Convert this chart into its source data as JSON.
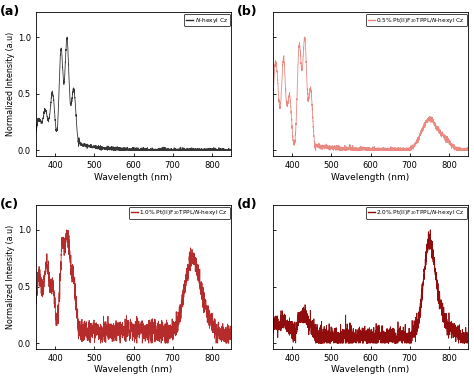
{
  "panel_labels": [
    "(a)",
    "(b)",
    "(c)",
    "(d)"
  ],
  "legend_labels_raw": [
    "–  $\\itN$-hexyl Cz",
    "–   0.5% Pt(II)F$_{20}$TPPL/$N$-hexyl Cz",
    "–   1.0% Pt(II)F$_{20}$TPPL/$N$-hexyl Cz",
    "–   2.0% Pt(II)F$_{20}$TPPL/$N$-hexyl Cz"
  ],
  "legend_labels_simple": [
    "$\\it{N}$-hexyl Cz",
    "0.5% Pt(II)F$_{20}$TPPL/$\\it{N}$-hexyl Cz",
    "1.0% Pt(II)F$_{20}$TPPL/$\\it{N}$-hexyl Cz",
    "2.0% Pt(II)F$_{20}$TPPL/$\\it{N}$-hexyl Cz"
  ],
  "colors": [
    "#2b2b2b",
    "#E8837A",
    "#B22020",
    "#8B0000"
  ],
  "xlabel": "Wavelength (nm)",
  "ylabel": "Normalized Intensity (a.u",
  "xlim": [
    350,
    850
  ],
  "ylim": [
    -0.05,
    1.25
  ],
  "ylim_display": [
    0.0,
    1.0
  ],
  "yticks": [
    0.0,
    0.5,
    1.0
  ],
  "xticks": [
    400,
    500,
    600,
    700,
    800
  ],
  "figsize": [
    4.74,
    3.8
  ],
  "dpi": 100
}
